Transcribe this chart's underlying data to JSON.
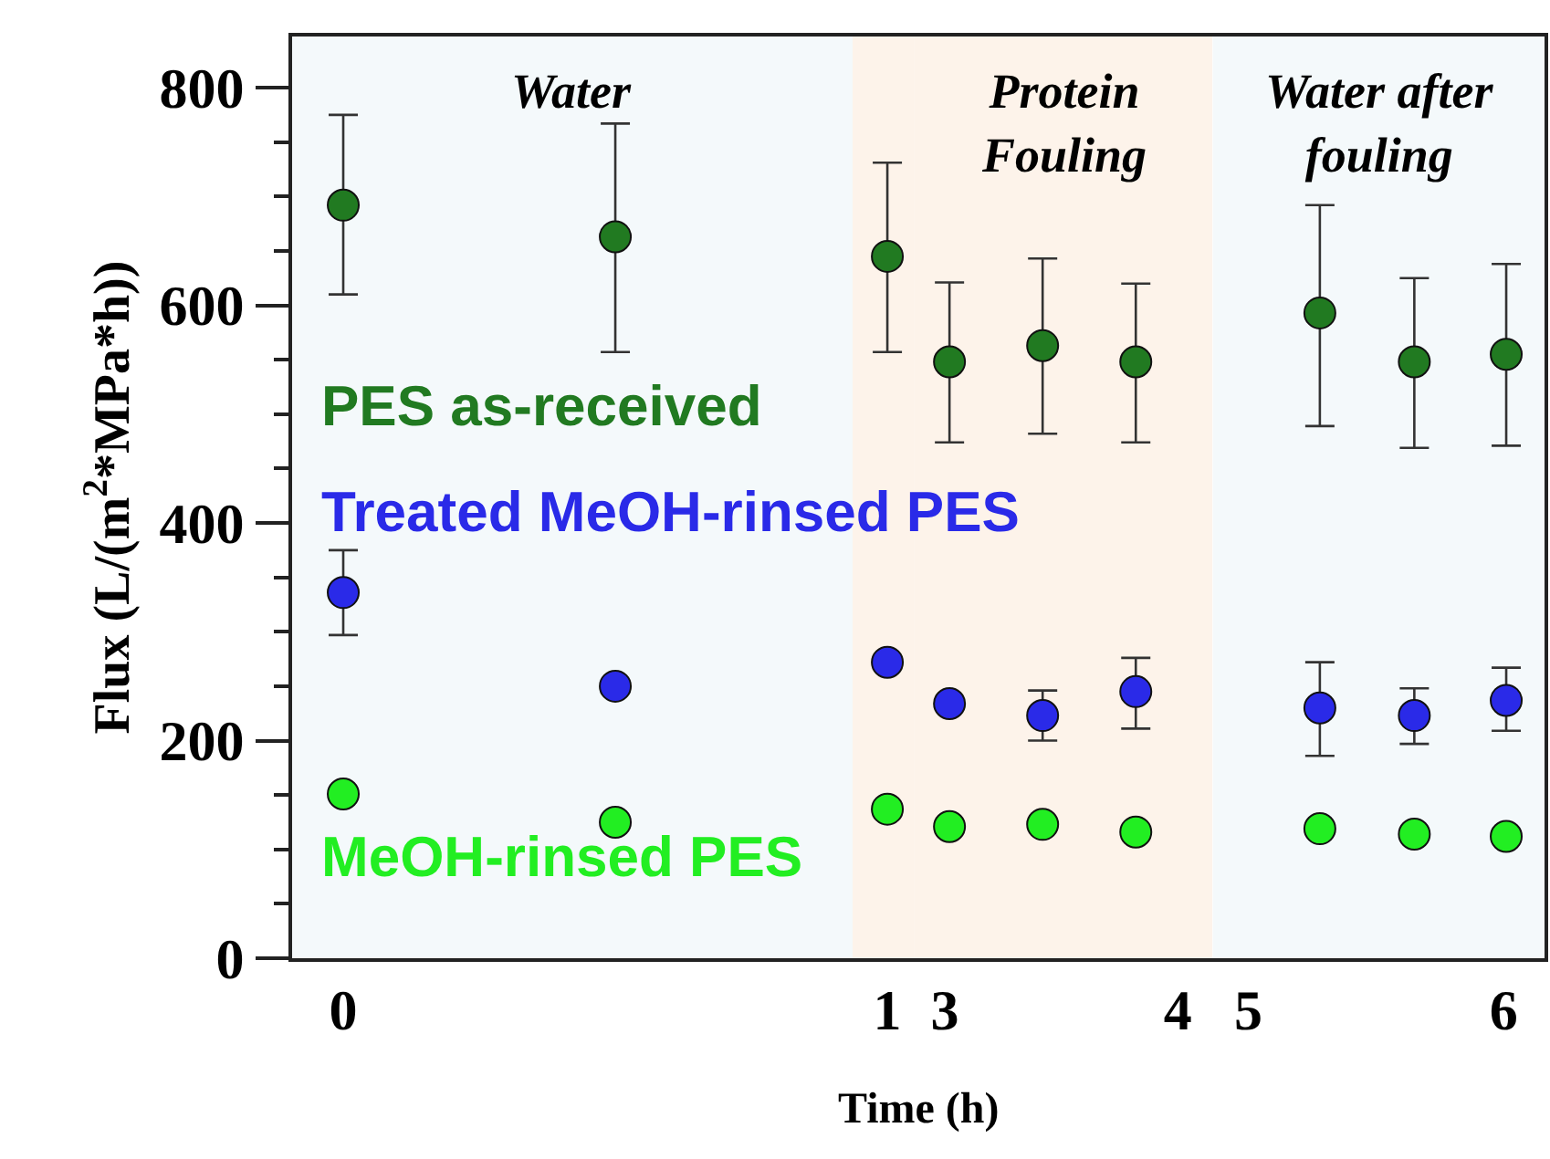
{
  "chart_data": [
    {
      "type": "scatter",
      "xlabel": "Time (h)",
      "ylabel": "Flux (L/(m$^{2}$*MPa*h))",
      "x": [
        0,
        0.5,
        1
      ],
      "xlim": [
        -0.094,
        1.05
      ],
      "xticks": [
        0,
        1
      ],
      "ylim": [
        0,
        847
      ],
      "yticks": [
        0,
        200,
        400,
        600,
        800
      ],
      "marker": "circle",
      "legend": false,
      "grid": false,
      "series": [
        {
          "name": "PES as-received",
          "color": "#217a21",
          "values": [
            692,
            663,
            645
          ],
          "errors": [
            [
              610,
              775
            ],
            [
              557,
              767
            ],
            [
              557,
              731
            ]
          ]
        },
        {
          "name": "Treated MeOH-rinsed PES",
          "color": "#2a2ae8",
          "values": [
            336,
            250,
            272
          ],
          "errors": [
            [
              297,
              375
            ],
            null,
            null
          ]
        },
        {
          "name": "MeOH-rinsed PES",
          "color": "#22ee22",
          "values": [
            151,
            125,
            137
          ]
        }
      ],
      "bands": [
        {
          "axis": "x",
          "from": -0.094,
          "to": 0.936,
          "label": "Water",
          "color": "#f4f9fb"
        },
        {
          "axis": "x",
          "from": 0.936,
          "to": 1.05,
          "color": "#fdf3ea"
        }
      ]
    },
    {
      "type": "scatter",
      "x": [
        3.02,
        3.42,
        3.82
      ],
      "xlim": [
        2.87,
        4.15
      ],
      "xticks": [
        3,
        4
      ],
      "ylim": [
        0,
        847
      ],
      "tick_labels": "x",
      "marker": "circle",
      "legend": false,
      "grid": false,
      "series": [
        {
          "color": "#217a21",
          "values": [
            548,
            563,
            548
          ],
          "errors": [
            [
              474,
              621
            ],
            [
              482,
              643
            ],
            [
              474,
              620
            ]
          ]
        },
        {
          "color": "#2a2ae8",
          "values": [
            234,
            223,
            245
          ],
          "errors": [
            null,
            [
              200,
              246
            ],
            [
              211,
              276
            ]
          ]
        },
        {
          "color": "#22ee22",
          "values": [
            121,
            123,
            116
          ]
        }
      ],
      "bands": [
        {
          "axis": "x",
          "from": 2.87,
          "to": 4.15,
          "label": "Protein\nFouling",
          "color": "#fdf3ea"
        }
      ]
    },
    {
      "type": "scatter",
      "x": [
        5.28,
        5.65,
        6.01
      ],
      "xlim": [
        4.86,
        6.16
      ],
      "xticks": [
        5,
        6
      ],
      "ylim": [
        0,
        847
      ],
      "tick_labels": "x",
      "marker": "circle",
      "legend": false,
      "grid": false,
      "series": [
        {
          "color": "#217a21",
          "values": [
            593,
            548,
            555
          ],
          "errors": [
            [
              489,
              692
            ],
            [
              469,
              625
            ],
            [
              471,
              638
            ]
          ]
        },
        {
          "color": "#2a2ae8",
          "values": [
            230,
            223,
            237
          ],
          "errors": [
            [
              186,
              272
            ],
            [
              197,
              248
            ],
            [
              209,
              267
            ]
          ]
        },
        {
          "color": "#22ee22",
          "values": [
            119,
            114,
            112
          ]
        }
      ],
      "bands": [
        {
          "axis": "x",
          "from": 4.86,
          "to": 6.16,
          "label": "Water after\nfouling",
          "color": "#f4f9fb"
        }
      ]
    }
  ]
}
